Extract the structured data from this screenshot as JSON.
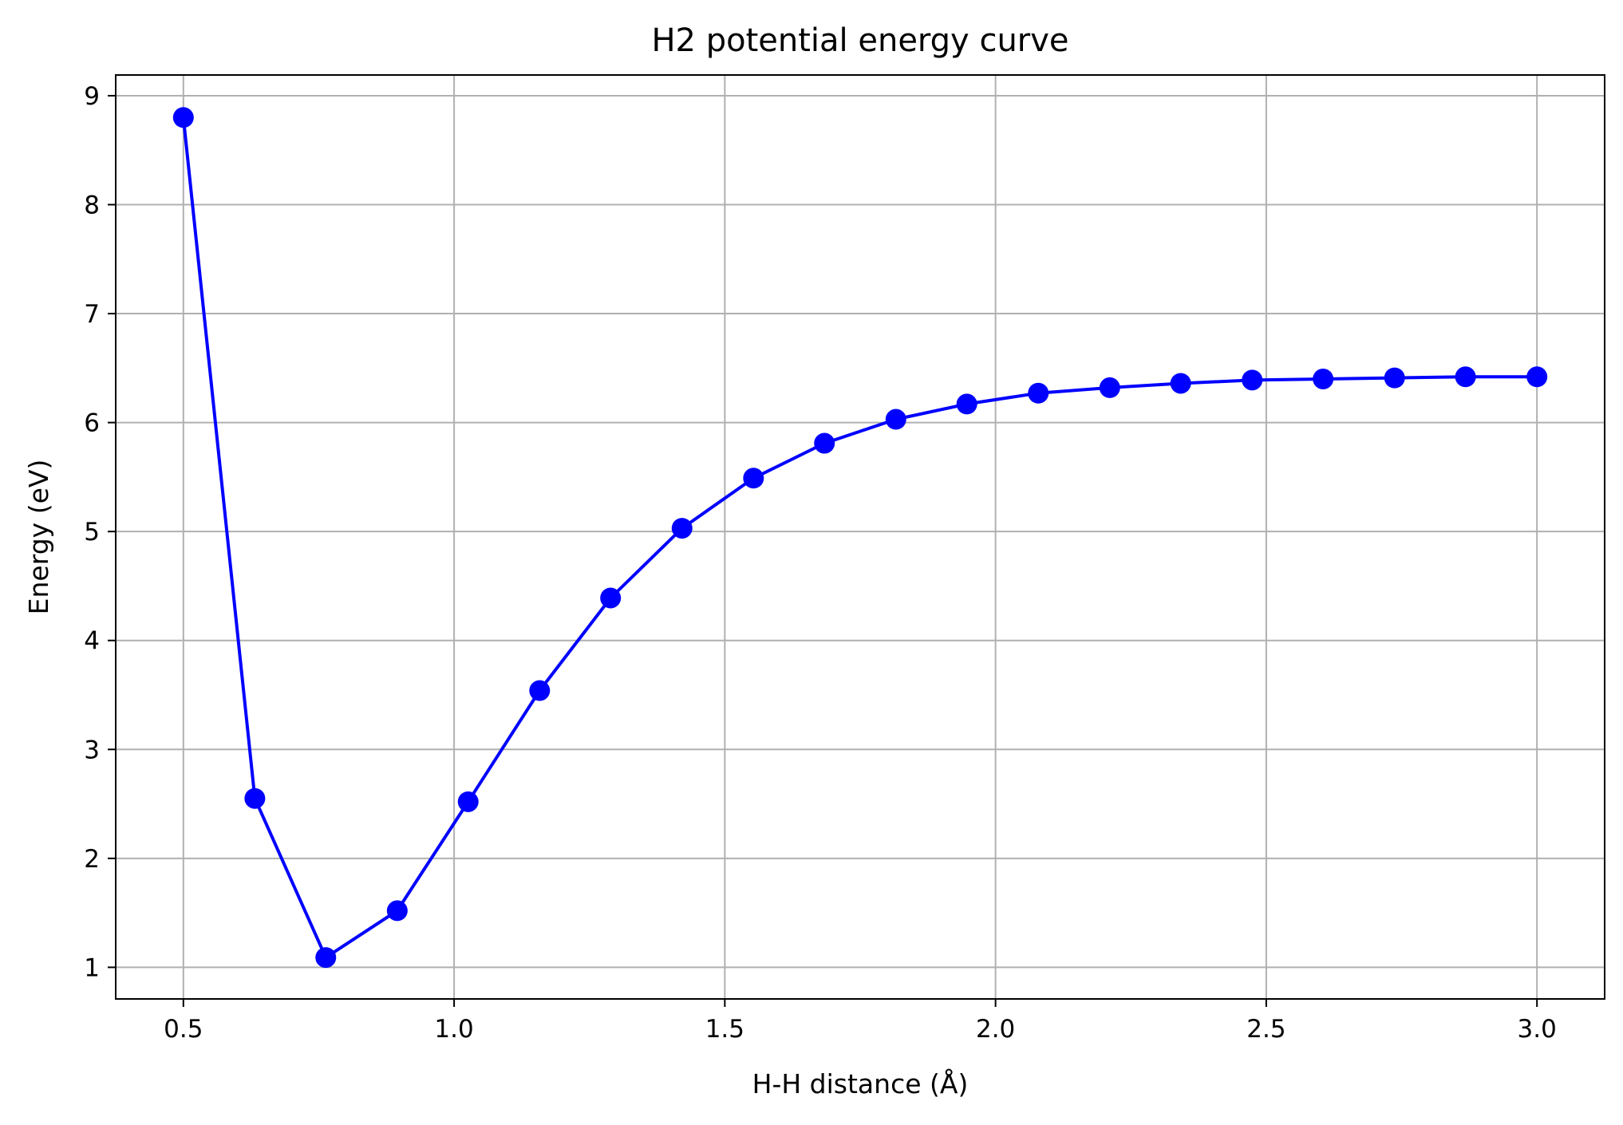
{
  "chart_data": {
    "type": "line",
    "title": "H2 potential energy curve",
    "xlabel": "H-H distance (Å)",
    "ylabel": "Energy (eV)",
    "xlim": [
      0.375,
      3.125
    ],
    "ylim": [
      0.71,
      9.19
    ],
    "xticks": [
      0.5,
      1.0,
      1.5,
      2.0,
      2.5,
      3.0
    ],
    "xtick_labels": [
      "0.5",
      "1.0",
      "1.5",
      "2.0",
      "2.5",
      "3.0"
    ],
    "yticks": [
      1,
      2,
      3,
      4,
      5,
      6,
      7,
      8,
      9
    ],
    "ytick_labels": [
      "1",
      "2",
      "3",
      "4",
      "5",
      "6",
      "7",
      "8",
      "9"
    ],
    "grid": true,
    "legend": "none",
    "series": [
      {
        "color": "#0000ff",
        "marker": "circle",
        "x": [
          0.5,
          0.632,
          0.763,
          0.895,
          1.026,
          1.158,
          1.289,
          1.421,
          1.553,
          1.684,
          1.816,
          1.947,
          2.079,
          2.211,
          2.342,
          2.474,
          2.605,
          2.737,
          2.868,
          3.0
        ],
        "y": [
          8.8,
          2.55,
          1.09,
          1.52,
          2.52,
          3.54,
          4.39,
          5.03,
          5.49,
          5.81,
          6.03,
          6.17,
          6.27,
          6.32,
          6.36,
          6.39,
          6.4,
          6.41,
          6.42,
          6.42
        ]
      }
    ]
  }
}
